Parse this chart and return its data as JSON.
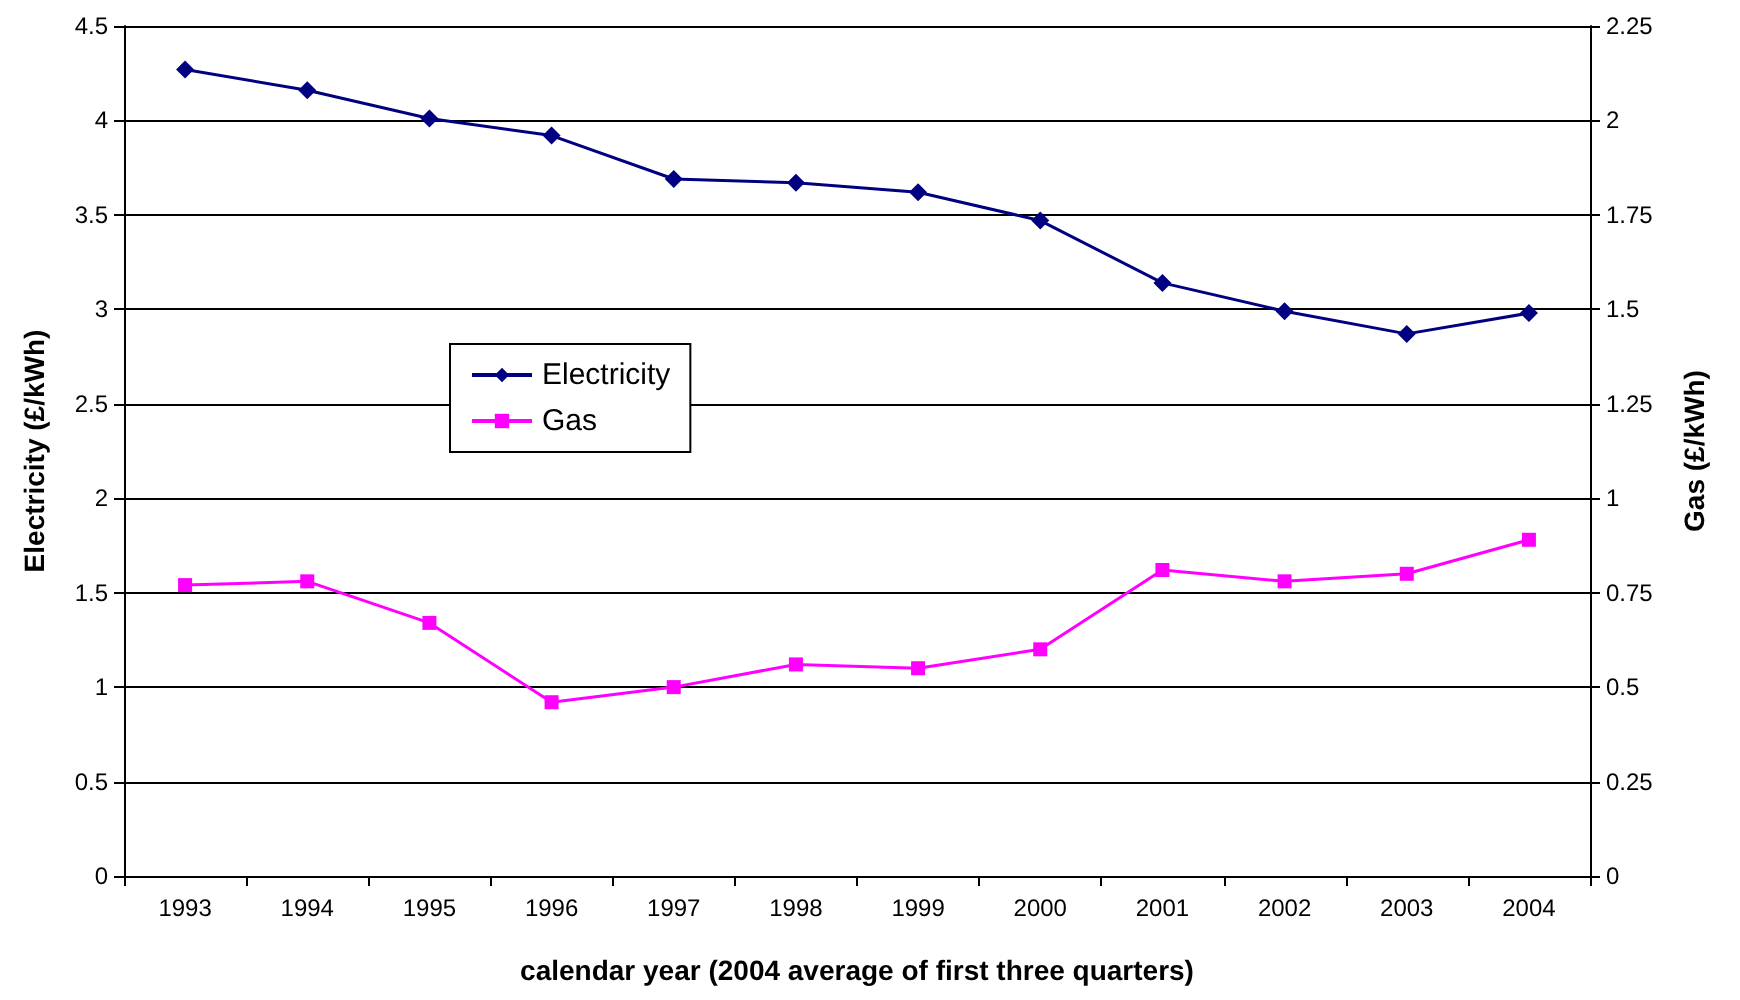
{
  "chart_data": {
    "type": "line",
    "xlabel": "calendar year (2004 average of first three quarters)",
    "ylabel": "Electricity (£/kWh)",
    "y2label": "Gas (£/kWh)",
    "categories": [
      "1993",
      "1994",
      "1995",
      "1996",
      "1997",
      "1998",
      "1999",
      "2000",
      "2001",
      "2002",
      "2003",
      "2004"
    ],
    "series": [
      {
        "name": "Electricity",
        "color": "#000080",
        "marker": "diamond",
        "values": [
          4.27,
          4.16,
          4.01,
          3.92,
          3.69,
          3.67,
          3.62,
          3.47,
          3.14,
          2.99,
          2.87,
          2.98
        ]
      },
      {
        "name": "Gas",
        "color": "#ff00ff",
        "marker": "square",
        "axis": "y2",
        "values": [
          0.77,
          0.78,
          0.67,
          0.46,
          0.5,
          0.56,
          0.55,
          0.6,
          0.81,
          0.78,
          0.8,
          0.89
        ]
      }
    ],
    "ylim": [
      0,
      4.5
    ],
    "yticks": [
      0,
      0.5,
      1,
      1.5,
      2,
      2.5,
      3,
      3.5,
      4,
      4.5
    ],
    "y2lim": [
      0,
      2.25
    ],
    "y2ticks": [
      0,
      0.25,
      0.5,
      0.75,
      1,
      1.25,
      1.5,
      1.75,
      2,
      2.25
    ],
    "grid": "y",
    "legend": "left",
    "line_style": "solid"
  }
}
